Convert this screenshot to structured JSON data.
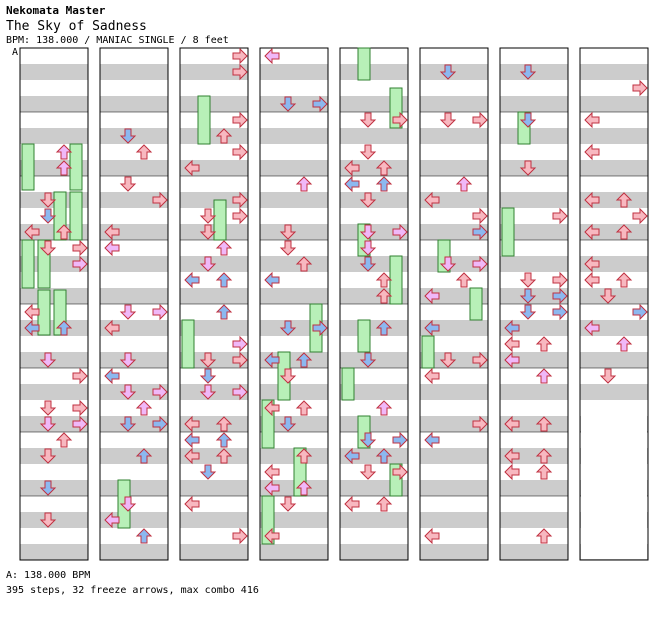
{
  "header": {
    "artist": "Nekomata Master",
    "title": "The Sky of Sadness",
    "info": "BPM: 138.000 / MANIAC SINGLE / 8 feet"
  },
  "bpm_marker": "A",
  "footer": {
    "bpm_line": "A: 138.000 BPM",
    "stats_line": "395 steps, 32 freeze arrows, max combo 416"
  },
  "colors": {
    "left": "#f8b8c0",
    "down": "#9cc8f8",
    "up": "#f8b8c0",
    "right": "#f8b8c0",
    "eighth": "#8cb8f0",
    "sixteenth": "#f0b8f8",
    "freeze": "#b8f0b8"
  }
}
